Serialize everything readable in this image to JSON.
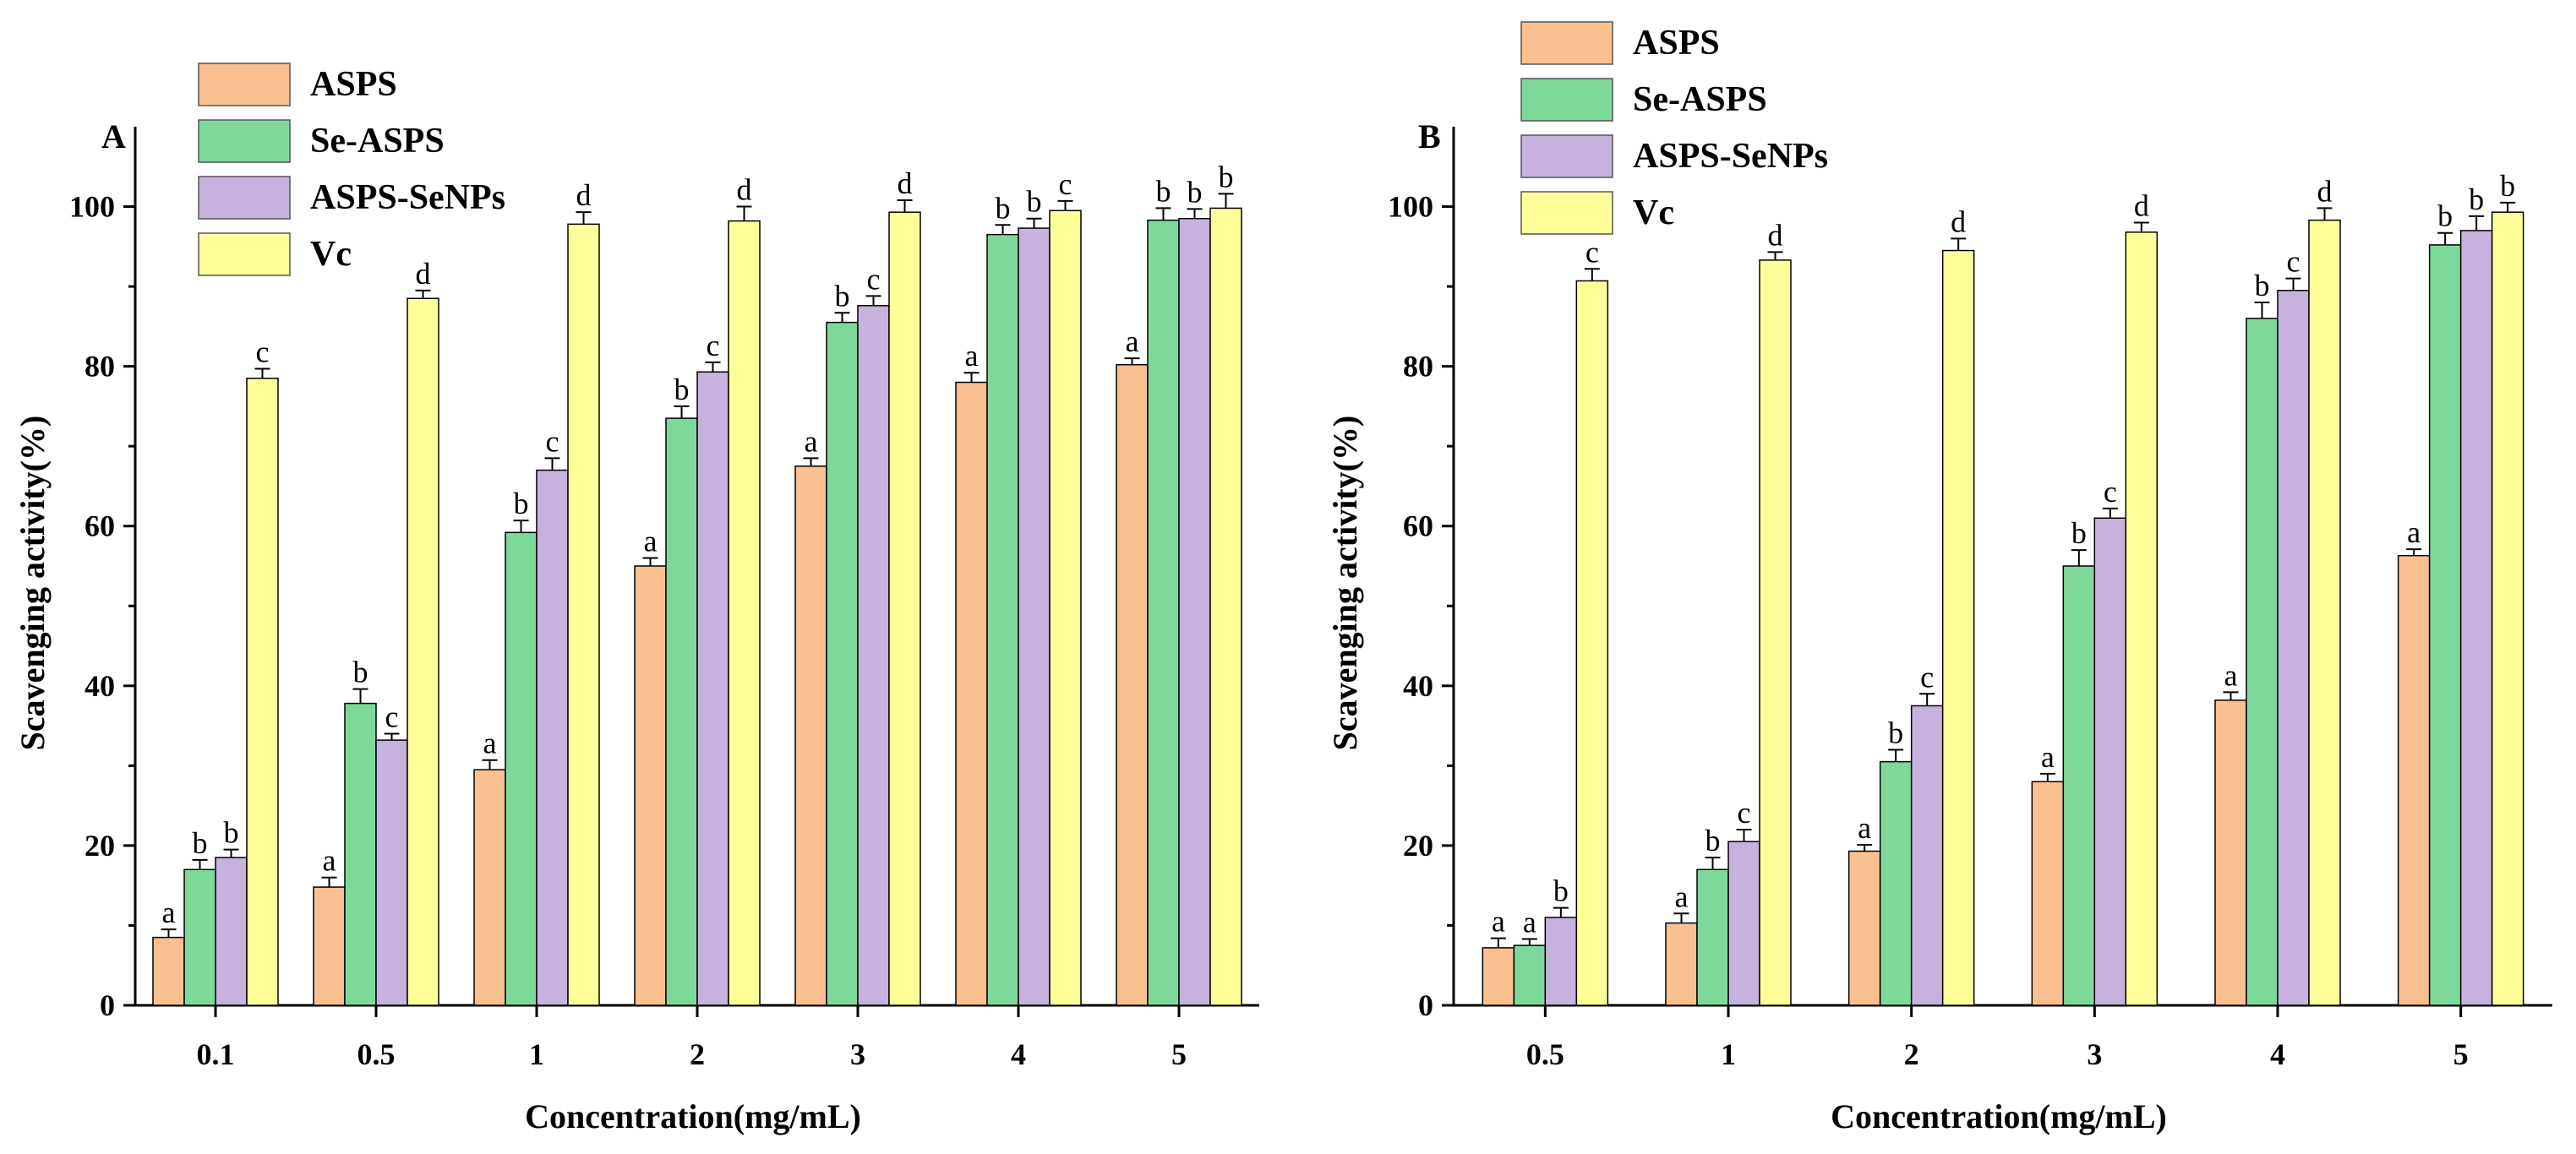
{
  "chart_data": [
    {
      "type": "bar",
      "panel_label": "A",
      "xlabel": "Concentration(mg/mL)",
      "ylabel": "Scavenging activity(%)",
      "ylim": [
        0,
        110
      ],
      "yticks": [
        0,
        20,
        40,
        60,
        80,
        100
      ],
      "categories": [
        "0.1",
        "0.5",
        "1",
        "2",
        "3",
        "4",
        "5"
      ],
      "legend_position": "top-left",
      "series": [
        {
          "name": "ASPS",
          "color": "#FAC090",
          "values": [
            8.5,
            14.8,
            29.5,
            55.0,
            67.5,
            78.0,
            80.2
          ],
          "errors": [
            1.0,
            1.2,
            1.2,
            1.0,
            1.0,
            1.2,
            0.8
          ],
          "labels": [
            "a",
            "a",
            "a",
            "a",
            "a",
            "a",
            "a"
          ]
        },
        {
          "name": "Se-ASPS",
          "color": "#7DD99A",
          "values": [
            17.0,
            37.8,
            59.2,
            73.5,
            85.5,
            96.5,
            98.3
          ],
          "errors": [
            1.2,
            1.8,
            1.5,
            1.5,
            1.2,
            1.2,
            1.5
          ],
          "labels": [
            "b",
            "b",
            "b",
            "b",
            "b",
            "b",
            "b"
          ]
        },
        {
          "name": "ASPS-SeNPs",
          "color": "#C6B2DC",
          "values": [
            18.5,
            33.2,
            67.0,
            79.3,
            87.6,
            97.3,
            98.5
          ],
          "errors": [
            1.0,
            0.8,
            1.5,
            1.2,
            1.2,
            1.2,
            1.2
          ],
          "labels": [
            "b",
            "c",
            "c",
            "c",
            "c",
            "b",
            "b"
          ]
        },
        {
          "name": "Vc",
          "color": "#FFFF99",
          "values": [
            78.5,
            88.5,
            97.8,
            98.2,
            99.3,
            99.5,
            99.8
          ],
          "errors": [
            1.2,
            1.0,
            1.5,
            1.8,
            1.5,
            1.2,
            1.8
          ],
          "labels": [
            "c",
            "d",
            "d",
            "d",
            "d",
            "c",
            "b"
          ]
        }
      ]
    },
    {
      "type": "bar",
      "panel_label": "B",
      "xlabel": "Concentration(mg/mL)",
      "ylabel": "Scavenging activity(%)",
      "ylim": [
        0,
        110
      ],
      "yticks": [
        0,
        20,
        40,
        60,
        80,
        100
      ],
      "categories": [
        "0.5",
        "1",
        "2",
        "3",
        "4",
        "5"
      ],
      "legend_position": "top-left",
      "series": [
        {
          "name": "ASPS",
          "color": "#FAC090",
          "values": [
            7.2,
            10.3,
            19.3,
            28.0,
            38.2,
            56.3
          ],
          "errors": [
            1.2,
            1.2,
            0.8,
            1.0,
            1.0,
            0.8
          ],
          "labels": [
            "a",
            "a",
            "a",
            "a",
            "a",
            "a"
          ]
        },
        {
          "name": "Se-ASPS",
          "color": "#7DD99A",
          "values": [
            7.5,
            17.0,
            30.5,
            55.0,
            86.0,
            95.2
          ],
          "errors": [
            0.8,
            1.5,
            1.5,
            2.0,
            2.0,
            1.5
          ],
          "labels": [
            "a",
            "b",
            "b",
            "b",
            "b",
            "b"
          ]
        },
        {
          "name": "ASPS-SeNPs",
          "color": "#C6B2DC",
          "values": [
            11.0,
            20.5,
            37.5,
            61.0,
            89.5,
            97.0
          ],
          "errors": [
            1.2,
            1.5,
            1.5,
            1.2,
            1.5,
            1.8
          ],
          "labels": [
            "b",
            "c",
            "c",
            "c",
            "c",
            "b"
          ]
        },
        {
          "name": "Vc",
          "color": "#FFFF99",
          "values": [
            90.7,
            93.3,
            94.5,
            96.8,
            98.3,
            99.3
          ],
          "errors": [
            1.5,
            1.0,
            1.5,
            1.2,
            1.5,
            1.2
          ],
          "labels": [
            "c",
            "d",
            "d",
            "d",
            "d",
            "b"
          ]
        }
      ]
    }
  ]
}
